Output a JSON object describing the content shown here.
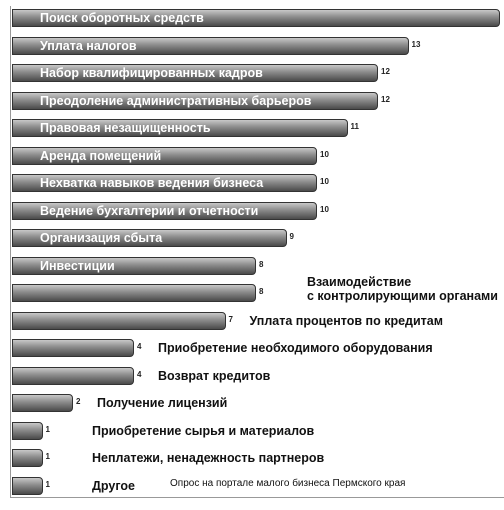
{
  "chart_data": {
    "type": "barh",
    "categories": [
      "Поиск оборотных средств",
      "Уплата налогов",
      "Набор квалифицированных кадров",
      "Преодоление административных барьеров",
      "Правовая незащищенность",
      "Аренда помещений",
      "Нехватка  навыков ведения бизнеса",
      "Ведение бухгалтерии и отчетности",
      "Организация сбыта",
      "Инвестиции",
      "Взаимодействие\nс контролирующими органами",
      "Уплата процентов по кредитам",
      "Приобретение необходимого оборудования",
      "Возврат кредитов",
      "Получение лицензий",
      "Приобретение сырья и материалов",
      "Неплатежи, ненадежность партнеров",
      "Другое"
    ],
    "values": [
      16,
      13,
      12,
      12,
      11,
      10,
      10,
      10,
      9,
      8,
      8,
      7,
      4,
      4,
      2,
      1,
      1,
      1
    ],
    "value_labels": [
      null,
      "13",
      "12",
      "12",
      "11",
      "10",
      "10",
      "10",
      "9",
      "8",
      "8",
      "7",
      "4",
      "4",
      "2",
      "1",
      "1",
      "1"
    ],
    "color": "#8a8a8a",
    "xlim": [
      0,
      16
    ],
    "annotation": "Опрос на портале малого бизнеса Пермского края"
  }
}
